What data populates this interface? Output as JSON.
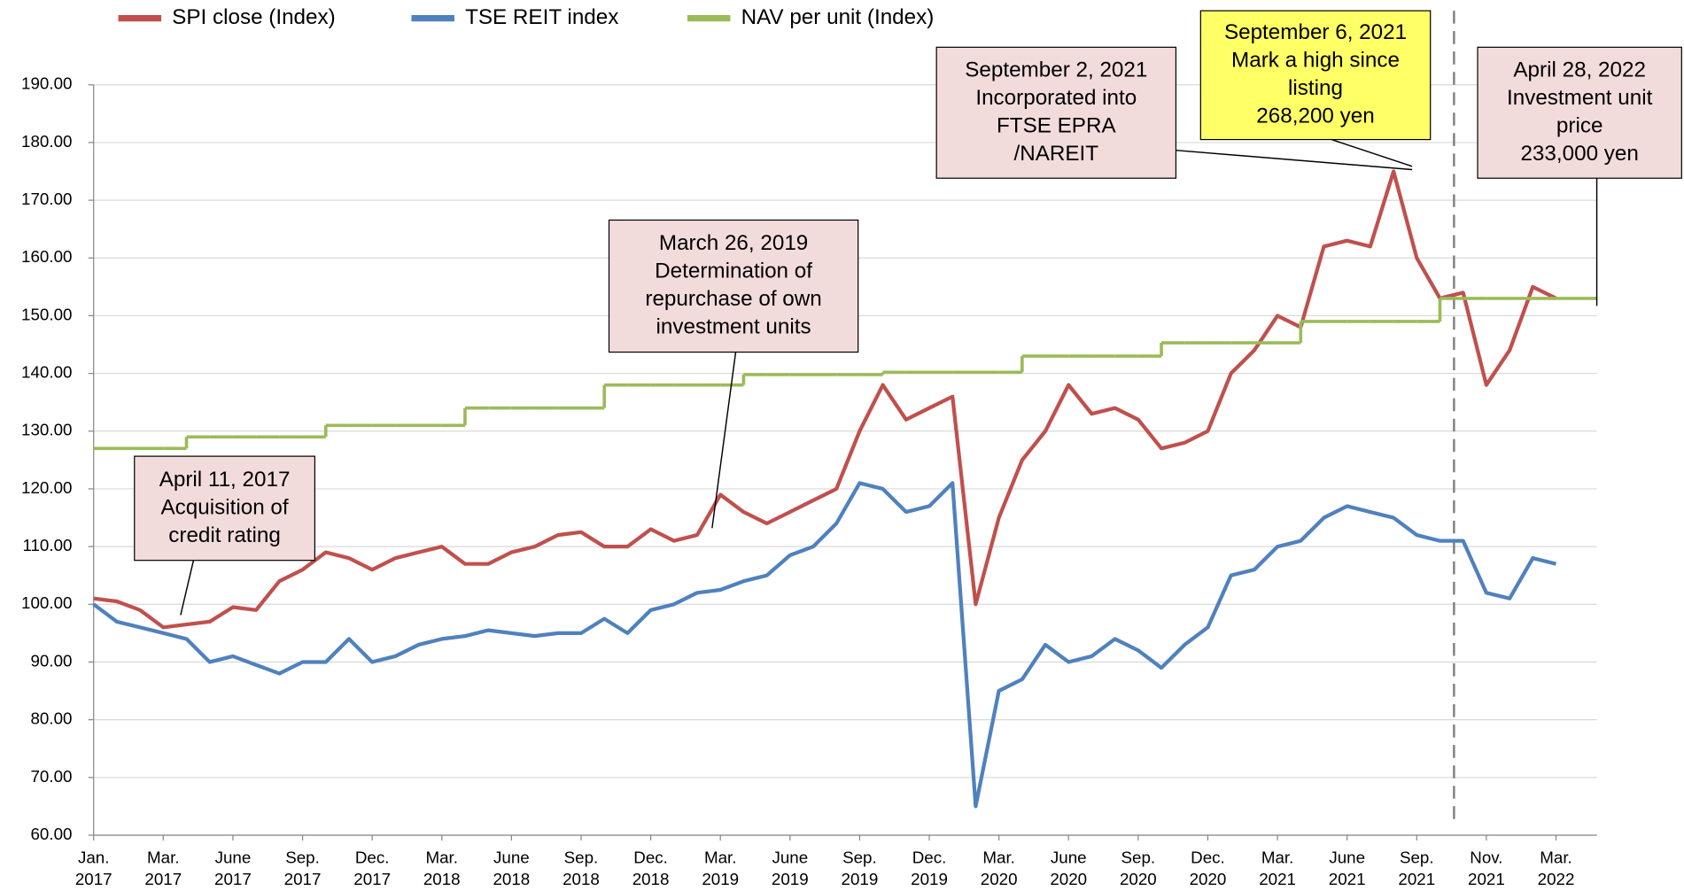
{
  "chart_data": {
    "type": "line",
    "x": [
      "2017-01",
      "2017-02",
      "2017-03",
      "2017-04",
      "2017-05",
      "2017-06",
      "2017-07",
      "2017-08",
      "2017-09",
      "2017-10",
      "2017-11",
      "2017-12",
      "2018-01",
      "2018-02",
      "2018-03",
      "2018-04",
      "2018-05",
      "2018-06",
      "2018-07",
      "2018-08",
      "2018-09",
      "2018-10",
      "2018-11",
      "2018-12",
      "2019-01",
      "2019-02",
      "2019-03",
      "2019-04",
      "2019-05",
      "2019-06",
      "2019-07",
      "2019-08",
      "2019-09",
      "2019-10",
      "2019-11",
      "2019-12",
      "2020-01",
      "2020-02",
      "2020-03",
      "2020-04",
      "2020-05",
      "2020-06",
      "2020-07",
      "2020-08",
      "2020-09",
      "2020-10",
      "2020-11",
      "2020-12",
      "2021-01",
      "2021-02",
      "2021-03",
      "2021-04",
      "2021-05",
      "2021-06",
      "2021-07",
      "2021-08",
      "2021-09",
      "2021-10",
      "2021-11",
      "2021-12",
      "2022-01",
      "2022-02",
      "2022-03",
      "2022-04"
    ],
    "series": [
      {
        "name": "SPI close (Index)",
        "color": "#c0504d",
        "values": [
          101,
          100.5,
          99,
          96,
          96.5,
          97,
          99.5,
          99,
          104,
          106,
          109,
          108,
          106,
          108,
          109,
          110,
          107,
          107,
          109,
          110,
          112,
          112.5,
          110,
          110,
          113,
          111,
          112,
          119,
          116,
          114,
          116,
          118,
          120,
          130,
          138,
          132,
          134,
          136,
          100,
          115,
          125,
          130,
          138,
          133,
          134,
          132,
          127,
          128,
          130,
          140,
          144,
          150,
          148,
          162,
          163,
          162,
          175,
          160,
          153,
          154,
          138,
          144,
          155,
          153
        ]
      },
      {
        "name": "TSE REIT index",
        "color": "#4f81bd",
        "values": [
          100,
          97,
          96,
          95,
          94,
          90,
          91,
          89.5,
          88,
          90,
          90,
          94,
          90,
          91,
          93,
          94,
          94.5,
          95.5,
          95,
          94.5,
          95,
          95,
          97.5,
          95,
          99,
          100,
          102,
          102.5,
          104,
          105,
          108.5,
          110,
          114,
          121,
          120,
          116,
          117,
          121,
          65,
          85,
          87,
          93,
          90,
          91,
          94,
          92,
          89,
          93,
          96,
          105,
          106,
          110,
          111,
          115,
          117,
          116,
          115,
          112,
          111,
          111,
          102,
          101,
          108,
          107
        ]
      },
      {
        "name": "NAV per unit (Index)",
        "color": "#9bbb59",
        "step": true,
        "values": [
          127,
          127,
          127,
          127,
          129,
          129,
          129,
          129,
          129,
          129,
          131,
          131,
          131,
          131,
          131,
          131,
          134,
          134,
          134,
          134,
          134,
          134,
          138,
          138,
          138,
          138,
          138,
          138,
          139.8,
          139.8,
          139.8,
          139.8,
          139.8,
          139.8,
          140.2,
          140.2,
          140.2,
          140.2,
          140.2,
          140.2,
          143,
          143,
          143,
          143,
          143,
          143,
          145.3,
          145.3,
          145.3,
          145.3,
          145.3,
          145.3,
          149,
          149,
          149,
          149,
          149,
          149,
          153,
          153,
          153,
          153,
          153,
          153
        ]
      }
    ],
    "ylim": [
      60,
      190
    ],
    "yticks": [
      {
        "value": 60,
        "label": "60.00"
      },
      {
        "value": 70,
        "label": "70.00"
      },
      {
        "value": 80,
        "label": "80.00"
      },
      {
        "value": 90,
        "label": "90.00"
      },
      {
        "value": 100,
        "label": "100.00"
      },
      {
        "value": 110,
        "label": "110.00"
      },
      {
        "value": 120,
        "label": "120.00"
      },
      {
        "value": 130,
        "label": "130.00"
      },
      {
        "value": 140,
        "label": "140.00"
      },
      {
        "value": 150,
        "label": "150.00"
      },
      {
        "value": 160,
        "label": "160.00"
      },
      {
        "value": 170,
        "label": "170.00"
      },
      {
        "value": 180,
        "label": "180.00"
      },
      {
        "value": 190,
        "label": "190.00"
      }
    ],
    "xticks": [
      {
        "value": "2017-01",
        "label": "Jan. 2017"
      },
      {
        "value": "2017-04",
        "label": "Mar. 2017"
      },
      {
        "value": "2017-07",
        "label": "June 2017"
      },
      {
        "value": "2017-10",
        "label": "Sep. 2017"
      },
      {
        "value": "2018-01",
        "label": "Dec. 2017"
      },
      {
        "value": "2018-04",
        "label": "Mar. 2018"
      },
      {
        "value": "2018-07",
        "label": "June 2018"
      },
      {
        "value": "2018-10",
        "label": "Sep. 2018"
      },
      {
        "value": "2019-01",
        "label": "Dec. 2018"
      },
      {
        "value": "2019-04",
        "label": "Mar. 2019"
      },
      {
        "value": "2019-07",
        "label": "June 2019"
      },
      {
        "value": "2019-10",
        "label": "Sep. 2019"
      },
      {
        "value": "2020-01",
        "label": "Dec. 2019"
      },
      {
        "value": "2020-04",
        "label": "Mar. 2020"
      },
      {
        "value": "2020-07",
        "label": "June 2020"
      },
      {
        "value": "2020-10",
        "label": "Sep. 2020"
      },
      {
        "value": "2021-01",
        "label": "Dec. 2020"
      },
      {
        "value": "2021-04",
        "label": "Mar. 2021"
      },
      {
        "value": "2021-07",
        "label": "June 2021"
      },
      {
        "value": "2021-10",
        "label": "Sep. 2021"
      },
      {
        "value": "2022-01",
        "label": "Nov. 2021"
      },
      {
        "value": "2022-04",
        "label": "Mar. 2022"
      }
    ],
    "grid": true,
    "legend": "top",
    "annotations": [
      {
        "lines": [
          "April 11, 2017",
          "Acquisition of",
          "credit rating"
        ]
      },
      {
        "lines": [
          "March 26, 2019",
          "Determination of",
          "repurchase of own",
          "investment units"
        ]
      },
      {
        "lines": [
          "September 2, 2021",
          "Incorporated into",
          "FTSE EPRA",
          "/NAREIT"
        ]
      },
      {
        "lines": [
          "September 6, 2021",
          "Mark a high since",
          "listing",
          "268,200 yen"
        ],
        "highlight": true
      },
      {
        "lines": [
          "April 28, 2022",
          "Investment unit",
          "price",
          "233,000 yen"
        ]
      }
    ]
  }
}
